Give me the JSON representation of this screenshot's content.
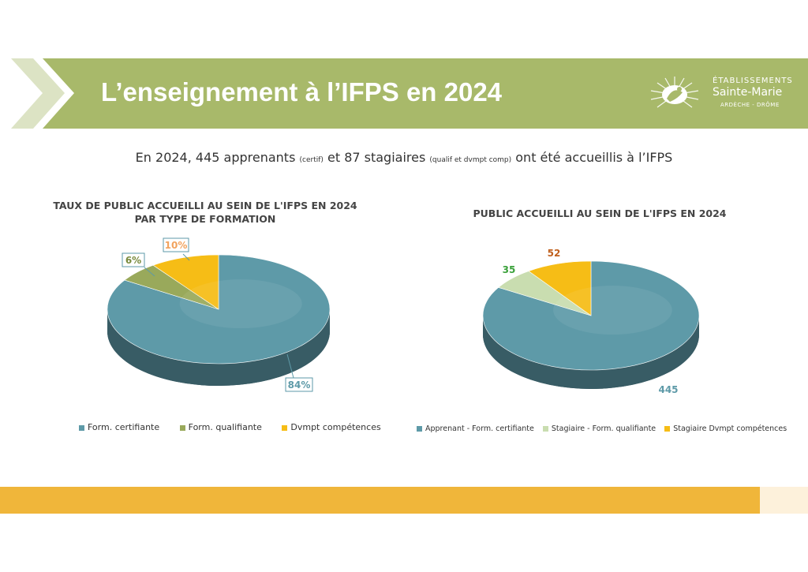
{
  "header": {
    "title": "L’enseignement à l’IFPS en 2024",
    "logo": {
      "line1": "ÉTABLISSEMENTS",
      "line2": "Sainte-Marie",
      "line3": "ARDÈCHE - DRÔME"
    }
  },
  "intro": {
    "part1": "En 2024, 445 apprenants ",
    "small1": "(certif)",
    "part2": " et 87 stagiaires ",
    "small2": "(qualif et dvmpt comp)",
    "part3": " ont été accueillis à l’IFPS"
  },
  "colors": {
    "banner": "#A8B96A",
    "teal": "#5E9AA8",
    "olive": "#99A95B",
    "gold": "#F6BD16",
    "lightgreen": "#C9DDB0",
    "footer": "#F0B63A"
  },
  "chart_data": [
    {
      "type": "pie",
      "title_line1": "TAUX DE PUBLIC ACCUEILLI AU SEIN DE L'IFPS EN 2024",
      "title_line2": "PAR TYPE DE FORMATION",
      "categories": [
        "Form. certifiante",
        "Form. qualifiante",
        "Dvmpt compétences"
      ],
      "values": [
        84,
        6,
        10
      ],
      "labels": [
        "84%",
        "6%",
        "10%"
      ],
      "colors": [
        "#5E9AA8",
        "#99A95B",
        "#F6BD16"
      ],
      "label_colors": [
        "#5E9AA8",
        "#7A8B3E",
        "#F2A35E"
      ],
      "legend_position": "bottom"
    },
    {
      "type": "pie",
      "title": "PUBLIC ACCUEILLI AU SEIN DE L'IFPS EN 2024",
      "categories": [
        "Apprenant - Form. certifiante",
        "Stagiaire - Form. qualifiante",
        "Stagiaire Dvmpt compétences"
      ],
      "values": [
        445,
        35,
        52
      ],
      "labels": [
        "445",
        "35",
        "52"
      ],
      "colors": [
        "#5E9AA8",
        "#C9DDB0",
        "#F6BD16"
      ],
      "label_colors": [
        "#5E9AA8",
        "#3BA13B",
        "#C0601E"
      ],
      "legend_position": "bottom"
    }
  ]
}
